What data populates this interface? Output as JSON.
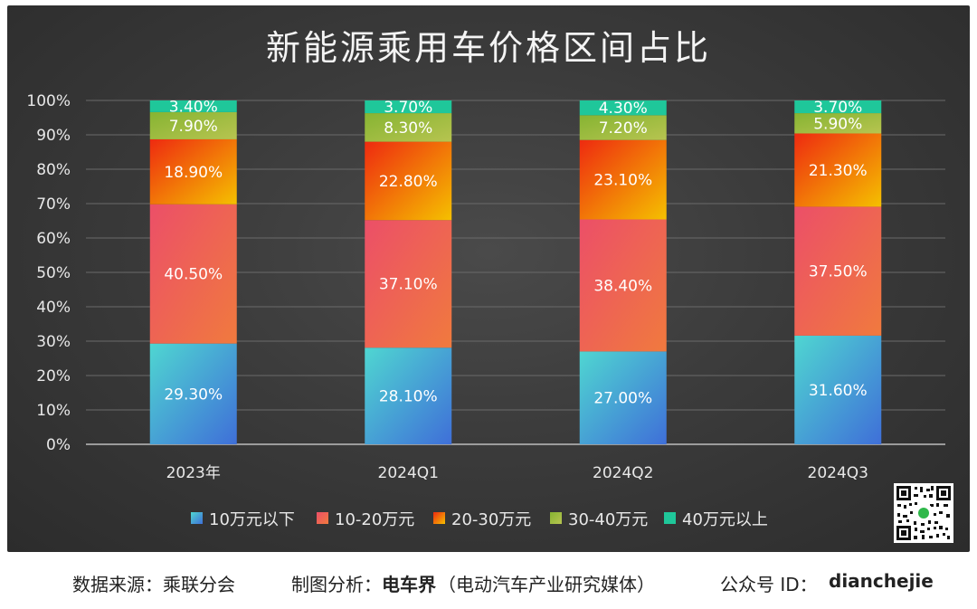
{
  "chart_data": {
    "type": "bar",
    "stacked": true,
    "title": "新能源乘用车价格区间占比",
    "categories": [
      "2023年",
      "2024Q1",
      "2024Q2",
      "2024Q3"
    ],
    "series": [
      {
        "name": "10万元以下",
        "values": [
          29.3,
          28.1,
          27.0,
          31.6
        ],
        "labels": [
          "29.30%",
          "28.10%",
          "27.00%",
          "31.60%"
        ],
        "color_top": "#4fd6d1",
        "color_bottom": "#3f6fd8"
      },
      {
        "name": "10-20万元",
        "values": [
          40.5,
          37.1,
          38.4,
          37.5
        ],
        "labels": [
          "40.50%",
          "37.10%",
          "38.40%",
          "37.50%"
        ],
        "color_top": "#ec4f68",
        "color_bottom": "#f07a3e"
      },
      {
        "name": "20-30万元",
        "values": [
          18.9,
          22.8,
          23.1,
          21.3
        ],
        "labels": [
          "18.90%",
          "22.80%",
          "23.10%",
          "21.30%"
        ],
        "color_top": "#ee2a10",
        "color_bottom": "#f5c000"
      },
      {
        "name": "30-40万元",
        "values": [
          7.9,
          8.3,
          7.2,
          5.9
        ],
        "labels": [
          "7.90%",
          "8.30%",
          "7.20%",
          "5.90%"
        ],
        "color_top": "#86b432",
        "color_bottom": "#b7c450"
      },
      {
        "name": "40万元以上",
        "values": [
          3.4,
          3.7,
          4.3,
          3.7
        ],
        "labels": [
          "3.40%",
          "3.70%",
          "4.30%",
          "3.70%"
        ],
        "color_top": "#1fc79a",
        "color_bottom": "#1fc79a"
      }
    ],
    "y_ticks": [
      "0%",
      "10%",
      "20%",
      "30%",
      "40%",
      "50%",
      "60%",
      "70%",
      "80%",
      "90%",
      "100%"
    ],
    "ylim": [
      0,
      100
    ],
    "grid": true,
    "legend_position": "bottom"
  },
  "footer": {
    "source": "数据来源：乘联分会",
    "made_by_label": "制图分析：",
    "made_by_name": "电车界",
    "made_by_desc": "（电动汽车产业研究媒体）",
    "account_label": "公众号 ID：",
    "account_id": "dianchejie"
  }
}
